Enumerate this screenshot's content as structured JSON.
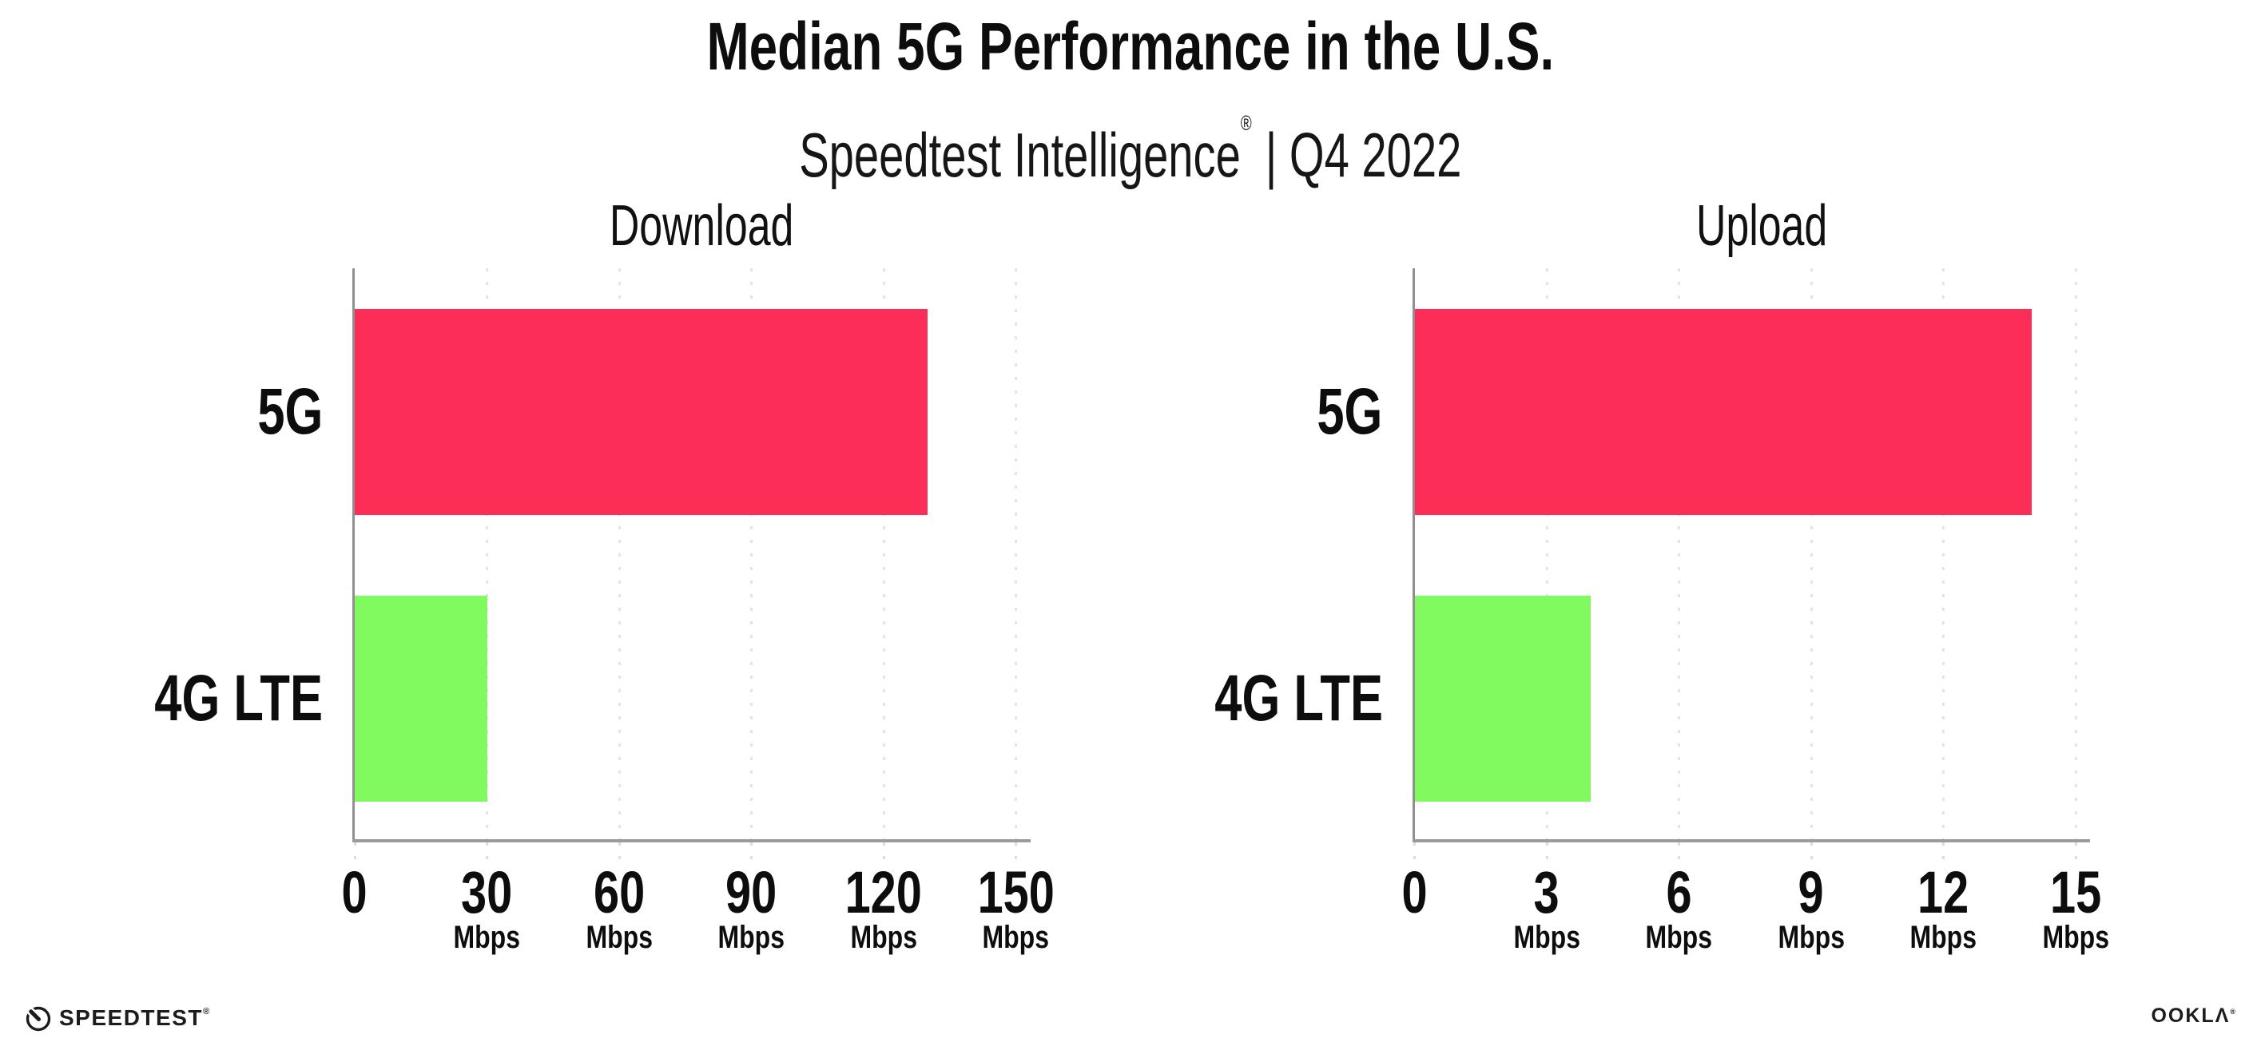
{
  "header": {
    "title": "Median 5G Performance in the U.S.",
    "subtitle_brand": "Speedtest Intelligence",
    "subtitle_reg": "®",
    "subtitle_rest": " | Q4 2022"
  },
  "colors": {
    "bar_5g": "#fc2e58",
    "bar_4g_lte": "#80fa5e",
    "gridline": "#e3e3ec",
    "y_axis_line": "#909090",
    "x_axis_line": "#9b9b9b",
    "text": "#0d0d0d"
  },
  "chart_data": [
    {
      "type": "bar",
      "orientation": "horizontal",
      "title": "Download",
      "categories": [
        "5G",
        "4G LTE"
      ],
      "values": [
        130,
        30
      ],
      "unit": "Mbps",
      "xlim": [
        0,
        150
      ],
      "xticks": [
        0,
        30,
        60,
        90,
        120,
        150
      ],
      "series_colors": [
        "#fc2e58",
        "#80fa5e"
      ],
      "grid": "vertical-dotted",
      "legend": "none"
    },
    {
      "type": "bar",
      "orientation": "horizontal",
      "title": "Upload",
      "categories": [
        "5G",
        "4G LTE"
      ],
      "values": [
        14,
        4
      ],
      "unit": "Mbps",
      "xlim": [
        0,
        15
      ],
      "xticks": [
        0,
        3,
        6,
        9,
        12,
        15
      ],
      "series_colors": [
        "#fc2e58",
        "#80fa5e"
      ],
      "grid": "vertical-dotted",
      "legend": "none"
    }
  ],
  "footer": {
    "speedtest_label": "SPEEDTEST",
    "speedtest_reg": "®",
    "ookla_label": "OOKLΛ",
    "ookla_reg": "®"
  }
}
